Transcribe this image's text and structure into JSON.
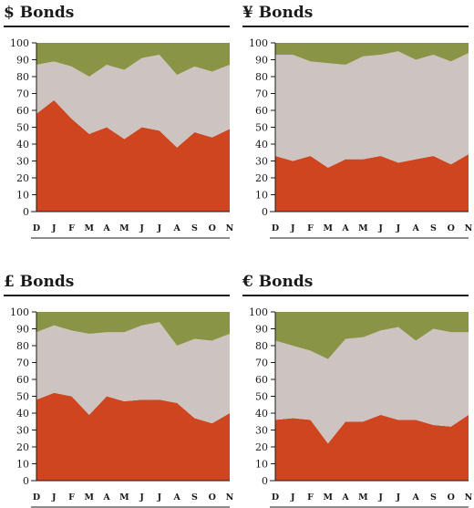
{
  "chart_data": [
    {
      "type": "area",
      "title": "$ Bonds",
      "categories": [
        "D",
        "J",
        "F",
        "M",
        "A",
        "M",
        "J",
        "J",
        "A",
        "S",
        "O",
        "N"
      ],
      "ylim": [
        0,
        100
      ],
      "yticks": [
        0,
        10,
        20,
        30,
        40,
        50,
        60,
        70,
        80,
        90,
        100
      ],
      "stacked": true,
      "series": [
        {
          "color": "#cf4520",
          "values": [
            58,
            66,
            55,
            46,
            50,
            43,
            50,
            48,
            38,
            47,
            44,
            49
          ]
        },
        {
          "color": "#cdc3c0",
          "values": [
            29,
            23,
            31,
            34,
            37,
            41,
            41,
            45,
            43,
            39,
            39,
            38
          ]
        },
        {
          "color": "#8a9446",
          "values": [
            13,
            11,
            14,
            20,
            13,
            16,
            9,
            7,
            19,
            14,
            17,
            13
          ]
        }
      ]
    },
    {
      "type": "area",
      "title": "¥ Bonds",
      "categories": [
        "D",
        "J",
        "F",
        "M",
        "A",
        "M",
        "J",
        "J",
        "A",
        "S",
        "O",
        "N"
      ],
      "ylim": [
        0,
        100
      ],
      "yticks": [
        0,
        10,
        20,
        30,
        40,
        50,
        60,
        70,
        80,
        90,
        100
      ],
      "stacked": true,
      "series": [
        {
          "color": "#cf4520",
          "values": [
            33,
            30,
            33,
            26,
            31,
            31,
            33,
            29,
            31,
            33,
            28,
            34
          ]
        },
        {
          "color": "#cdc3c0",
          "values": [
            60,
            63,
            56,
            62,
            56,
            61,
            60,
            66,
            59,
            60,
            61,
            60
          ]
        },
        {
          "color": "#8a9446",
          "values": [
            7,
            7,
            11,
            12,
            13,
            8,
            7,
            5,
            10,
            7,
            11,
            6
          ]
        }
      ]
    },
    {
      "type": "area",
      "title": "£ Bonds",
      "categories": [
        "D",
        "J",
        "F",
        "M",
        "A",
        "M",
        "J",
        "J",
        "A",
        "S",
        "O",
        "N"
      ],
      "ylim": [
        0,
        100
      ],
      "yticks": [
        0,
        10,
        20,
        30,
        40,
        50,
        60,
        70,
        80,
        90,
        100
      ],
      "stacked": true,
      "series": [
        {
          "color": "#cf4520",
          "values": [
            48,
            52,
            50,
            39,
            50,
            47,
            48,
            48,
            46,
            37,
            34,
            40
          ]
        },
        {
          "color": "#cdc3c0",
          "values": [
            40,
            40,
            39,
            48,
            38,
            41,
            44,
            46,
            34,
            47,
            49,
            47
          ]
        },
        {
          "color": "#8a9446",
          "values": [
            12,
            8,
            11,
            13,
            12,
            12,
            8,
            6,
            20,
            16,
            17,
            13
          ]
        }
      ]
    },
    {
      "type": "area",
      "title": "€ Bonds",
      "categories": [
        "D",
        "J",
        "F",
        "M",
        "A",
        "M",
        "J",
        "J",
        "A",
        "S",
        "O",
        "N"
      ],
      "ylim": [
        0,
        100
      ],
      "yticks": [
        0,
        10,
        20,
        30,
        40,
        50,
        60,
        70,
        80,
        90,
        100
      ],
      "stacked": true,
      "series": [
        {
          "color": "#cf4520",
          "values": [
            36,
            37,
            36,
            22,
            35,
            35,
            39,
            36,
            36,
            33,
            32,
            39
          ]
        },
        {
          "color": "#cdc3c0",
          "values": [
            47,
            43,
            41,
            50,
            49,
            50,
            50,
            55,
            47,
            57,
            56,
            49
          ]
        },
        {
          "color": "#8a9446",
          "values": [
            17,
            20,
            23,
            28,
            16,
            15,
            11,
            9,
            17,
            10,
            12,
            12
          ]
        }
      ]
    }
  ]
}
